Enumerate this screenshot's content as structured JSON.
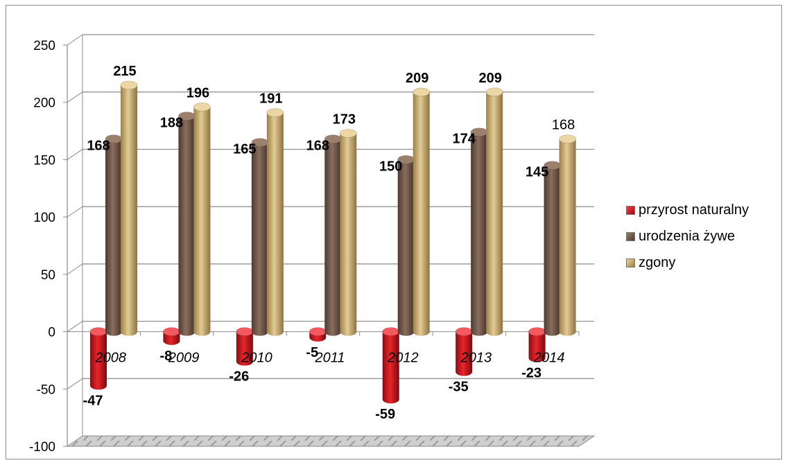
{
  "chart_data": {
    "type": "bar",
    "categories": [
      "2008",
      "2009",
      "2010",
      "2011",
      "2012",
      "2013",
      "2014"
    ],
    "series": [
      {
        "name": "przyrost naturalny",
        "values": [
          -47,
          -8,
          -26,
          -5,
          -59,
          -35,
          -23
        ],
        "color": "#c8141c"
      },
      {
        "name": "urodzenia żywe",
        "values": [
          168,
          188,
          165,
          168,
          150,
          174,
          145
        ],
        "color": "#6e5446"
      },
      {
        "name": "zgony",
        "values": [
          215,
          196,
          191,
          173,
          209,
          209,
          168
        ],
        "color": "#c6a970"
      }
    ],
    "yticks": [
      "250",
      "200",
      "150",
      "100",
      "50",
      "0",
      "-50",
      "-100"
    ],
    "ylim": [
      -100,
      250
    ],
    "grid": true,
    "legend_position": "right",
    "title": "",
    "xlabel": "",
    "ylabel": ""
  }
}
